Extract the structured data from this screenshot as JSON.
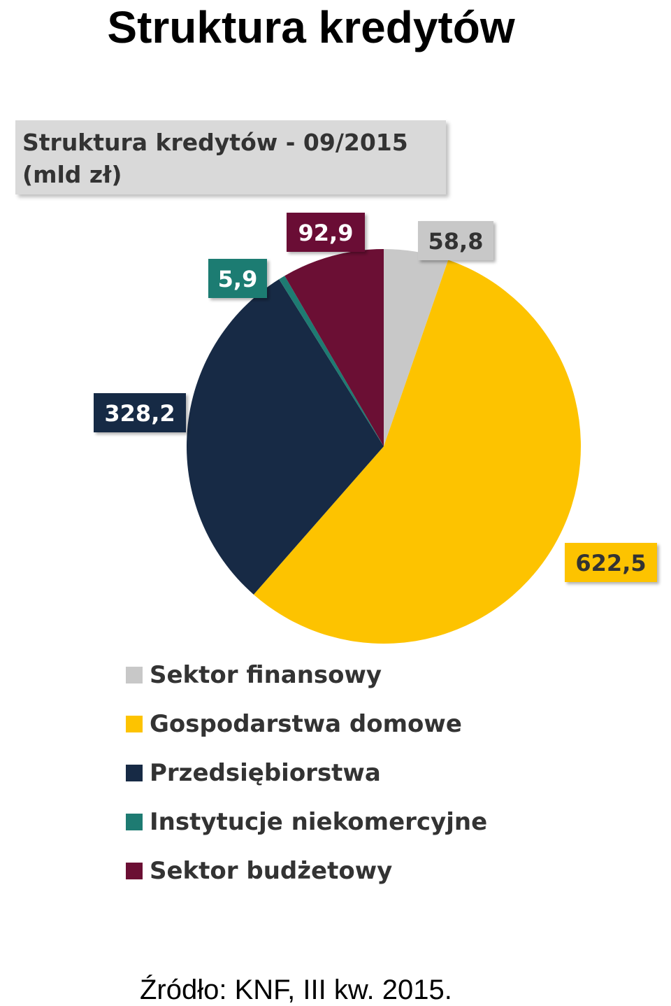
{
  "page_title": "Struktura kredytów",
  "chart_heading": {
    "line1": "Struktura kredytów - 09/2015",
    "line2": "(mld zł)"
  },
  "chart_data": {
    "type": "pie",
    "title": "Struktura kredytów - 09/2015 (mld zł)",
    "labels": [
      "Sektor finansowy",
      "Gospodarstwa domowe",
      "Przedsiębiorstwa",
      "Instytucje niekomercyjne",
      "Sektor budżetowy"
    ],
    "values": [
      58.8,
      622.5,
      328.2,
      5.9,
      92.9
    ],
    "value_labels": [
      "58,8",
      "622,5",
      "328,2",
      "5,9",
      "92,9"
    ],
    "colors": [
      "#c8c8c8",
      "#fdc300",
      "#172a45",
      "#1e7b72",
      "#6b0f34"
    ],
    "label_text_colors": [
      "#333333",
      "#333333",
      "#ffffff",
      "#ffffff",
      "#ffffff"
    ],
    "start_angle_deg": 0,
    "direction": "clockwise",
    "legend_position": "bottom"
  },
  "legend": {
    "items": [
      {
        "label": "Sektor finansowy",
        "color": "#c8c8c8"
      },
      {
        "label": "Gospodarstwa domowe",
        "color": "#fdc300"
      },
      {
        "label": "Przedsiębiorstwa",
        "color": "#172a45"
      },
      {
        "label": "Instytucje niekomercyjne",
        "color": "#1e7b72"
      },
      {
        "label": "Sektor budżetowy",
        "color": "#6b0f34"
      }
    ]
  },
  "source_note": "Źródło: KNF, III kw. 2015."
}
